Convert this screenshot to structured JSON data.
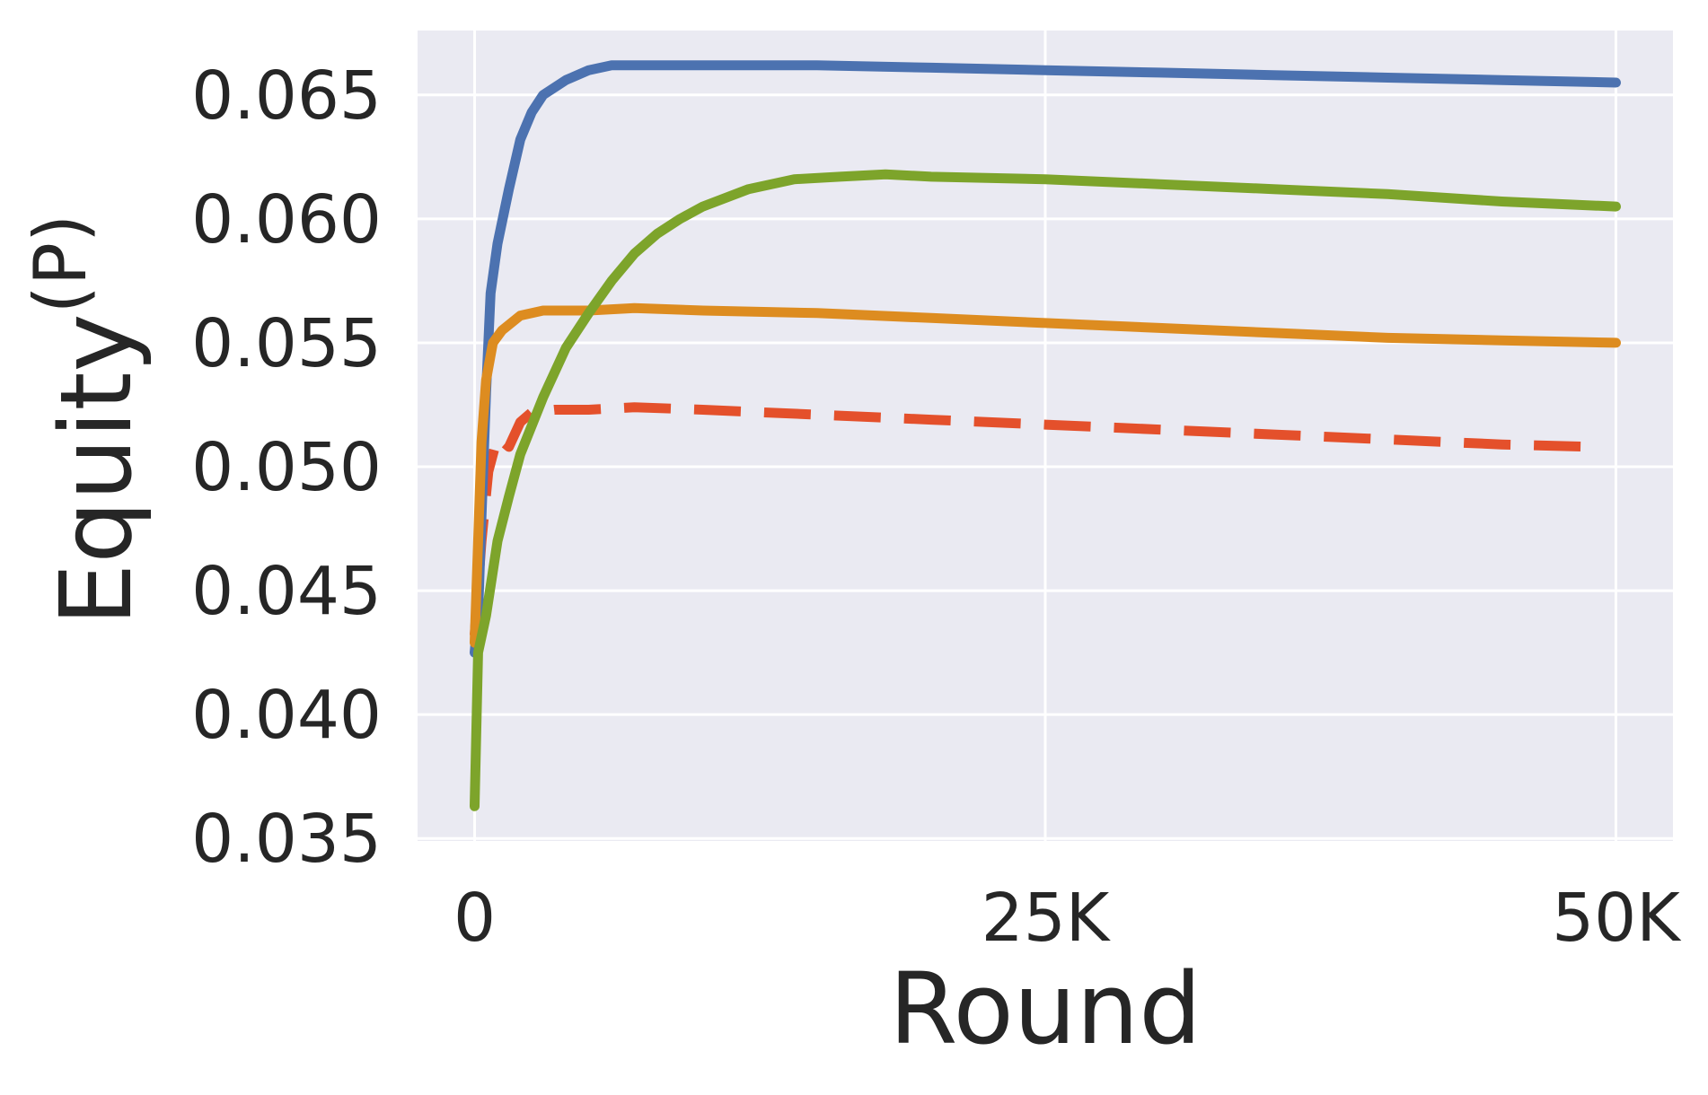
{
  "chart_data": {
    "type": "line",
    "title": "",
    "xlabel": "Round",
    "ylabel": "Equity",
    "ylabel_superscript": "(P)",
    "xlim": [
      -2500,
      52500
    ],
    "ylim": [
      0.0349,
      0.0676
    ],
    "x_ticks": [
      0,
      25000,
      50000
    ],
    "x_tick_labels": [
      "0",
      "25K",
      "50K"
    ],
    "y_ticks": [
      0.035,
      0.04,
      0.045,
      0.05,
      0.055,
      0.06,
      0.065
    ],
    "y_tick_labels": [
      "0.035",
      "0.040",
      "0.045",
      "0.050",
      "0.055",
      "0.060",
      "0.065"
    ],
    "grid": true,
    "background": "#eaeaf2",
    "series": [
      {
        "color": "#e4502b",
        "dashed": true,
        "points": [
          [
            0,
            0.0432
          ],
          [
            300,
            0.047
          ],
          [
            600,
            0.0498
          ],
          [
            1000,
            0.0512
          ],
          [
            1500,
            0.0508
          ],
          [
            2000,
            0.0518
          ],
          [
            2500,
            0.0522
          ],
          [
            3500,
            0.0523
          ],
          [
            5000,
            0.0523
          ],
          [
            7000,
            0.0524
          ],
          [
            10000,
            0.0523
          ],
          [
            15000,
            0.0521
          ],
          [
            20000,
            0.0519
          ],
          [
            25000,
            0.0517
          ],
          [
            30000,
            0.0515
          ],
          [
            35000,
            0.0513
          ],
          [
            40000,
            0.0511
          ],
          [
            45000,
            0.0509
          ],
          [
            49000,
            0.0508
          ]
        ]
      },
      {
        "color": "#4c72b0",
        "dashed": false,
        "points": [
          [
            0,
            0.0425
          ],
          [
            150,
            0.044
          ],
          [
            300,
            0.048
          ],
          [
            500,
            0.053
          ],
          [
            700,
            0.057
          ],
          [
            1000,
            0.059
          ],
          [
            1500,
            0.0612
          ],
          [
            2000,
            0.0632
          ],
          [
            2500,
            0.0643
          ],
          [
            3000,
            0.065
          ],
          [
            4000,
            0.0656
          ],
          [
            5000,
            0.066
          ],
          [
            6000,
            0.0662
          ],
          [
            8000,
            0.0662
          ],
          [
            10000,
            0.0662
          ],
          [
            15000,
            0.0662
          ],
          [
            20000,
            0.0661
          ],
          [
            25000,
            0.066
          ],
          [
            30000,
            0.0659
          ],
          [
            35000,
            0.0658
          ],
          [
            40000,
            0.0657
          ],
          [
            45000,
            0.0656
          ],
          [
            50000,
            0.0655
          ]
        ]
      },
      {
        "color": "#dd8c20",
        "dashed": false,
        "points": [
          [
            0,
            0.0429
          ],
          [
            150,
            0.047
          ],
          [
            300,
            0.051
          ],
          [
            500,
            0.0535
          ],
          [
            800,
            0.055
          ],
          [
            1200,
            0.0555
          ],
          [
            2000,
            0.0561
          ],
          [
            3000,
            0.0563
          ],
          [
            5000,
            0.0563
          ],
          [
            7000,
            0.0564
          ],
          [
            10000,
            0.0563
          ],
          [
            15000,
            0.0562
          ],
          [
            20000,
            0.056
          ],
          [
            25000,
            0.0558
          ],
          [
            30000,
            0.0556
          ],
          [
            35000,
            0.0554
          ],
          [
            40000,
            0.0552
          ],
          [
            45000,
            0.0551
          ],
          [
            50000,
            0.055
          ]
        ]
      },
      {
        "color": "#7da42b",
        "dashed": false,
        "points": [
          [
            0,
            0.0363
          ],
          [
            150,
            0.0425
          ],
          [
            500,
            0.044
          ],
          [
            1000,
            0.047
          ],
          [
            1500,
            0.0488
          ],
          [
            2000,
            0.0505
          ],
          [
            3000,
            0.0528
          ],
          [
            4000,
            0.0548
          ],
          [
            5000,
            0.0562
          ],
          [
            6000,
            0.0575
          ],
          [
            7000,
            0.0586
          ],
          [
            8000,
            0.0594
          ],
          [
            9000,
            0.06
          ],
          [
            10000,
            0.0605
          ],
          [
            12000,
            0.0612
          ],
          [
            14000,
            0.0616
          ],
          [
            16000,
            0.0617
          ],
          [
            18000,
            0.0618
          ],
          [
            20000,
            0.0617
          ],
          [
            25000,
            0.0616
          ],
          [
            30000,
            0.0614
          ],
          [
            35000,
            0.0612
          ],
          [
            40000,
            0.061
          ],
          [
            45000,
            0.0607
          ],
          [
            50000,
            0.0605
          ]
        ]
      }
    ]
  }
}
